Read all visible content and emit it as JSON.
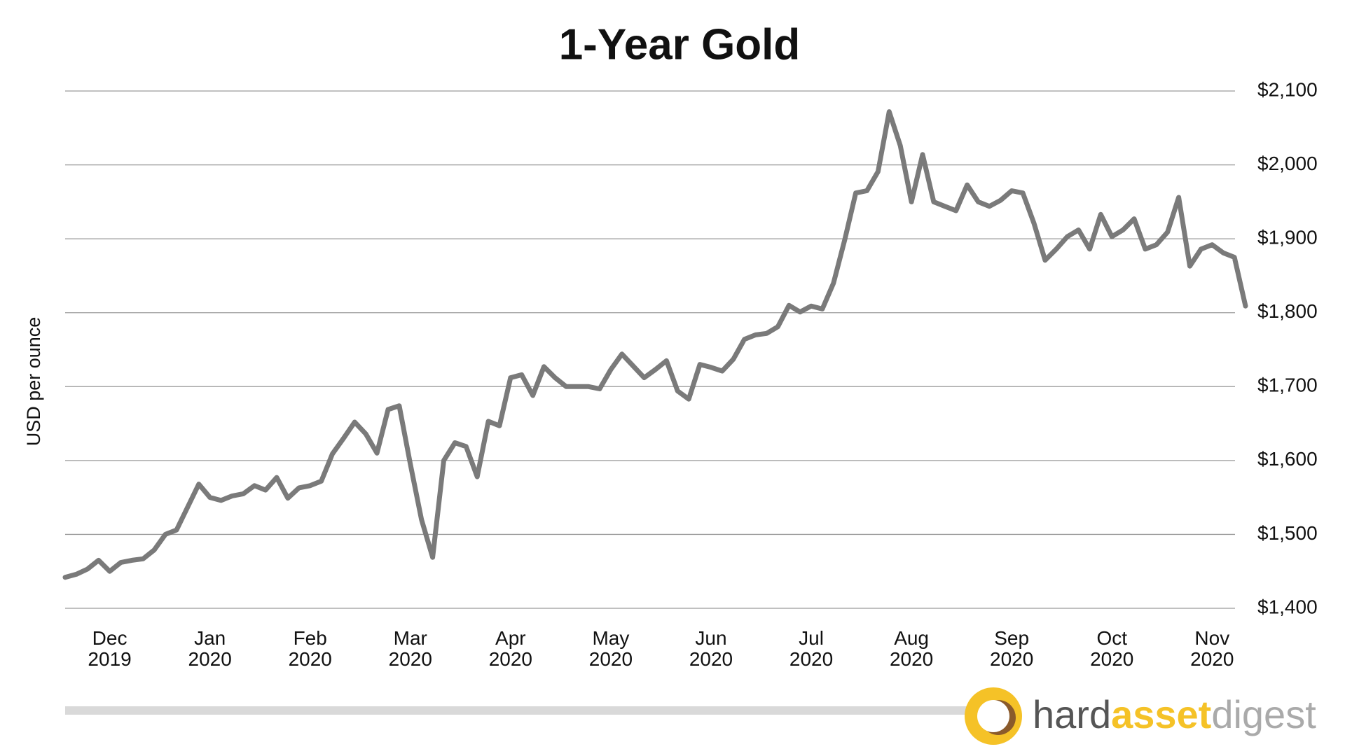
{
  "chart_data": {
    "type": "line",
    "title": "1-Year Gold",
    "y_axis_label": "USD per ounce",
    "color": "#7a7a7a",
    "grid": true,
    "y_axis_side": "right",
    "categories": [
      null,
      null,
      null,
      null,
      "Dec 2019",
      null,
      null,
      null,
      null,
      null,
      null,
      null,
      null,
      "Jan 2020",
      null,
      null,
      null,
      null,
      null,
      null,
      null,
      null,
      "Feb 2020",
      null,
      null,
      null,
      null,
      null,
      null,
      null,
      null,
      "Mar 2020",
      null,
      null,
      null,
      null,
      null,
      null,
      null,
      null,
      "Apr 2020",
      null,
      null,
      null,
      null,
      null,
      null,
      null,
      null,
      "May 2020",
      null,
      null,
      null,
      null,
      null,
      null,
      null,
      null,
      "Jun 2020",
      null,
      null,
      null,
      null,
      null,
      null,
      null,
      null,
      "Jul 2020",
      null,
      null,
      null,
      null,
      null,
      null,
      null,
      null,
      "Aug 2020",
      null,
      null,
      null,
      null,
      null,
      null,
      null,
      null,
      "Sep 2020",
      null,
      null,
      null,
      null,
      null,
      null,
      null,
      null,
      "Oct 2020",
      null,
      null,
      null,
      null,
      null,
      null,
      null,
      null,
      "Nov 2020",
      null,
      null,
      null
    ],
    "values": [
      1442,
      1446,
      1453,
      1465,
      1450,
      1462,
      1465,
      1467,
      1479,
      1500,
      1506,
      1537,
      1568,
      1550,
      1546,
      1552,
      1555,
      1566,
      1560,
      1577,
      1549,
      1563,
      1566,
      1572,
      1609,
      1630,
      1652,
      1636,
      1610,
      1669,
      1674,
      1595,
      1520,
      1469,
      1600,
      1624,
      1619,
      1578,
      1653,
      1647,
      1712,
      1716,
      1688,
      1727,
      1712,
      1700,
      1700,
      1700,
      1697,
      1723,
      1744,
      1728,
      1712,
      1723,
      1735,
      1694,
      1683,
      1730,
      1726,
      1721,
      1737,
      1764,
      1770,
      1772,
      1781,
      1810,
      1801,
      1809,
      1805,
      1840,
      1898,
      1962,
      1965,
      1991,
      2072,
      2026,
      1950,
      2014,
      1950,
      1944,
      1938,
      1973,
      1950,
      1944,
      1952,
      1965,
      1962,
      1921,
      1871,
      1886,
      1903,
      1912,
      1886,
      1933,
      1903,
      1912,
      1927,
      1886,
      1892,
      1909,
      1956,
      1863,
      1886,
      1892,
      1881,
      1875,
      1809
    ],
    "ylim": [
      1400,
      2100
    ],
    "yticks": [
      {
        "value": 1400,
        "label": "$1,400"
      },
      {
        "value": 1500,
        "label": "$1,500"
      },
      {
        "value": 1600,
        "label": "$1,600"
      },
      {
        "value": 1700,
        "label": "$1,700"
      },
      {
        "value": 1800,
        "label": "$1,800"
      },
      {
        "value": 1900,
        "label": "$1,900"
      },
      {
        "value": 2000,
        "label": "$2,000"
      },
      {
        "value": 2100,
        "label": "$2,100"
      }
    ]
  },
  "logo": {
    "parts": [
      "hard",
      "asset",
      "digest"
    ]
  }
}
